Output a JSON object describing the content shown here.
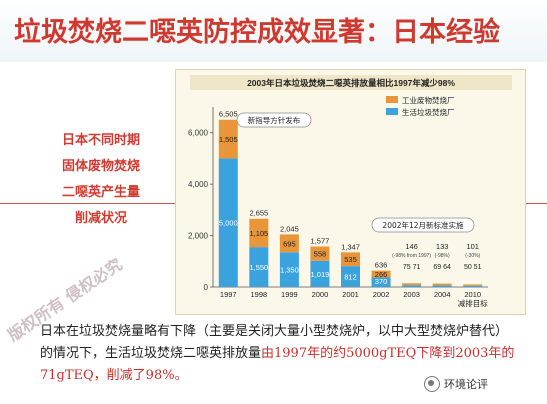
{
  "slide": {
    "title": "垃圾焚烧二噁英防控成效显著：日本经验",
    "side_caption": [
      "日本不同时期",
      "固体废物焚烧",
      "二噁英产生量",
      "削减状况"
    ],
    "footer_text_1": "日本在垃圾焚烧量略有下降（主要是关闭大量小型焚烧炉，以中大型焚烧炉替代）的情况下，生活垃圾焚烧二噁英排放量",
    "footer_text_red": "由1997年的约5000gTEQ下降到2003年的71gTEQ，削减了98%。",
    "watermark": "版权所有 侵权必究",
    "brand": "环境论评"
  },
  "chart_data": {
    "type": "bar",
    "title": "2003年日本垃圾焚烧二噁英排放量相比1997年减少98%",
    "ylabel": "二噁英排放量",
    "yunit": "(g/yr)",
    "ylim": [
      0,
      7000
    ],
    "yticks": [
      0,
      2000,
      4000,
      6000
    ],
    "ytick_labels": [
      "0",
      "2,000",
      "4,000",
      "6,000"
    ],
    "categories": [
      "1997",
      "1998",
      "1999",
      "2000",
      "2001",
      "2002",
      "2003",
      "2004",
      "2010\n减排目标"
    ],
    "series": [
      {
        "name": "生活垃圾焚烧厂",
        "color": "#3aa2dd",
        "values": [
          5000,
          1550,
          1350,
          1019,
          812,
          370,
          71,
          64,
          51
        ]
      },
      {
        "name": "工业废物焚烧厂",
        "color": "#e9963a",
        "values": [
          1505,
          1105,
          695,
          558,
          535,
          266,
          75,
          69,
          50
        ]
      }
    ],
    "totals": [
      6505,
      2655,
      2045,
      1577,
      1347,
      636,
      146,
      133,
      101
    ],
    "total_labels": [
      "6,505",
      "2,655",
      "2,045",
      "1,577",
      "1,347",
      "636",
      "146",
      "133",
      "101"
    ],
    "bottom_labels": [
      "5,000",
      "1,550",
      "1,350",
      "1,019",
      "812",
      "370",
      "71",
      "64",
      "51"
    ],
    "top_labels": [
      "1,505",
      "1,105",
      "695",
      "558",
      "535",
      "266",
      "75",
      "69",
      "50"
    ],
    "pct_labels": [
      "",
      "",
      "",
      "",
      "",
      "",
      "(-98% from 1997)",
      "(-98%)",
      "(-30%)"
    ],
    "annotations": [
      "新指导方针发布",
      "2002年12月新标准实施"
    ],
    "legend_position": "top-right"
  }
}
